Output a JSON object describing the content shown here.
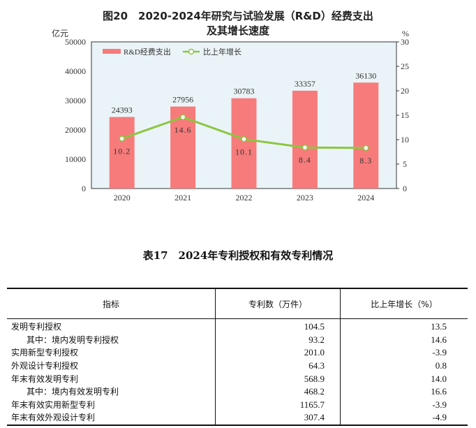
{
  "chart_data": {
    "type": "bar+line",
    "title": "图20　2020-2024年研究与试验发展（R&D）经费支出",
    "subtitle": "及其增长速度",
    "y_left_unit": "亿元",
    "y_right_unit": "%",
    "categories": [
      "2020",
      "2021",
      "2022",
      "2023",
      "2024"
    ],
    "y_left_ticks": [
      "0",
      "10000",
      "20000",
      "30000",
      "40000",
      "50000"
    ],
    "y_right_ticks": [
      "0",
      "5",
      "10",
      "15",
      "20",
      "25",
      "30"
    ],
    "ylim_left": [
      0,
      50000
    ],
    "ylim_right": [
      0,
      30
    ],
    "legend_position": "top-left",
    "series": [
      {
        "name": "R&D经费支出",
        "type": "bar",
        "axis": "left",
        "color": "#f77b7b",
        "values": [
          24393,
          27956,
          30783,
          33357,
          36130
        ],
        "labels": [
          "24393",
          "27956",
          "30783",
          "33357",
          "36130"
        ]
      },
      {
        "name": "比上年增长",
        "type": "line",
        "axis": "right",
        "color": "#8cc63f",
        "values": [
          10.2,
          14.6,
          10.1,
          8.4,
          8.3
        ],
        "labels": [
          "10.2",
          "14.6",
          "10.1",
          "8.4",
          "8.3"
        ]
      }
    ],
    "plot_bg": "#eaf4f8"
  },
  "table": {
    "title": "表17　2024年专利授权和有效专利情况",
    "headers": [
      "指标",
      "专利数（万件）",
      "比上年增长（%）"
    ],
    "rows": [
      {
        "name": "发明专利授权",
        "count": "104.5",
        "growth": "13.5",
        "indent": false
      },
      {
        "name": "其中：境内发明专利授权",
        "count": "93.2",
        "growth": "14.6",
        "indent": true
      },
      {
        "name": "实用新型专利授权",
        "count": "201.0",
        "growth": "-3.9",
        "indent": false
      },
      {
        "name": "外观设计专利授权",
        "count": "64.3",
        "growth": "0.8",
        "indent": false
      },
      {
        "name": "年末有效发明专利",
        "count": "568.9",
        "growth": "14.0",
        "indent": false
      },
      {
        "name": "其中：境内有效发明专利",
        "count": "468.2",
        "growth": "16.6",
        "indent": true
      },
      {
        "name": "年末有效实用新型专利",
        "count": "1165.7",
        "growth": "-3.9",
        "indent": false
      },
      {
        "name": "年末有效外观设计专利",
        "count": "307.4",
        "growth": "-4.9",
        "indent": false
      }
    ]
  }
}
